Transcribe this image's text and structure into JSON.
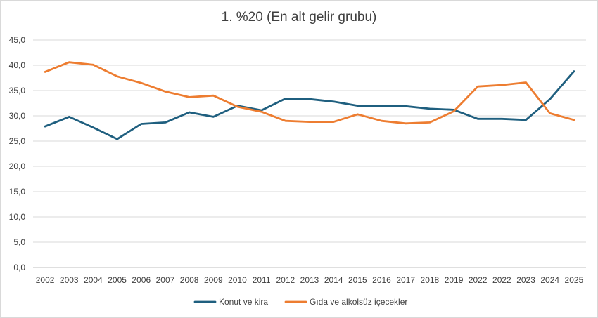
{
  "chart_data": {
    "type": "line",
    "title": "1. %20 (En alt gelir grubu)",
    "xlabel": "",
    "ylabel": "",
    "categories": [
      "2002",
      "2003",
      "2004",
      "2005",
      "2006",
      "2007",
      "2008",
      "2009",
      "2010",
      "2011",
      "2012",
      "2013",
      "2014",
      "2015",
      "2016",
      "2017",
      "2018",
      "2019",
      "2022",
      "2022",
      "2023",
      "2024",
      "2025"
    ],
    "yticks": [
      "0,0",
      "5,0",
      "10,0",
      "15,0",
      "20,0",
      "25,0",
      "30,0",
      "35,0",
      "40,0",
      "45,0"
    ],
    "ylim": [
      0,
      45
    ],
    "grid": true,
    "legend_position": "bottom",
    "series": [
      {
        "name": "Konut ve kira",
        "color": "#1f5f7f",
        "values": [
          27.9,
          29.8,
          27.7,
          25.4,
          28.4,
          28.7,
          30.7,
          29.8,
          32.0,
          31.1,
          33.4,
          33.3,
          32.8,
          32.0,
          32.0,
          31.9,
          31.4,
          31.2,
          29.4,
          29.4,
          29.2,
          33.3,
          38.8
        ]
      },
      {
        "name": "Gıda ve alkolsüz içecekler",
        "color": "#ed7d31",
        "values": [
          38.7,
          40.6,
          40.1,
          37.8,
          36.5,
          34.8,
          33.7,
          34.0,
          31.8,
          30.8,
          29.0,
          28.8,
          28.8,
          30.3,
          29.0,
          28.5,
          28.7,
          30.9,
          35.8,
          36.1,
          36.6,
          30.5,
          29.2
        ]
      }
    ]
  }
}
